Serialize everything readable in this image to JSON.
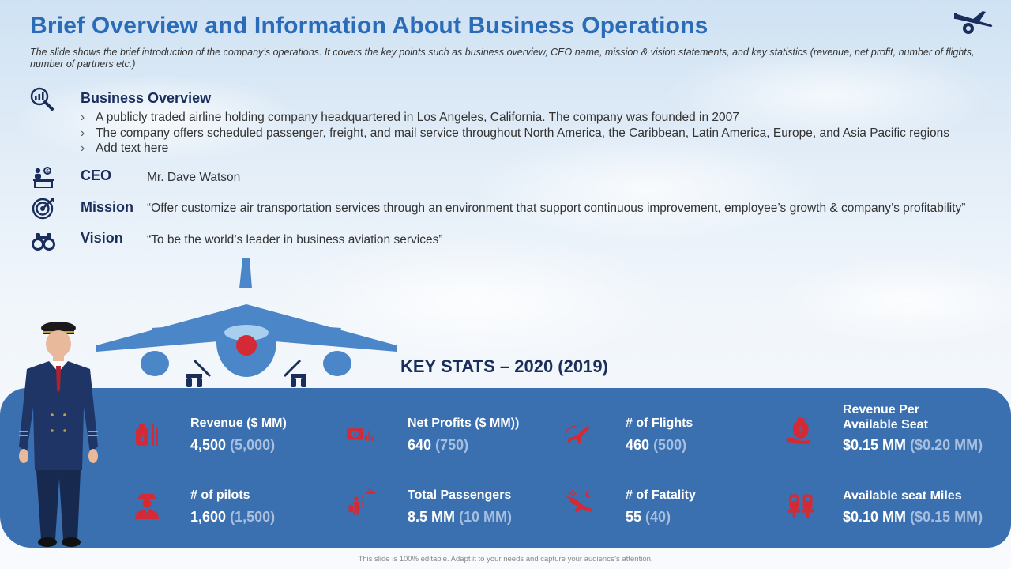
{
  "header": {
    "title": "Brief Overview and Information About Business Operations",
    "subtitle": "The slide shows the brief introduction of the company’s operations. It covers the key points such as business overview, CEO name, mission & vision statements, and key statistics (revenue, net profit, number of flights, number of partners etc.)"
  },
  "overview": {
    "title": "Business Overview",
    "bullets": [
      "A publicly traded airline holding company headquartered in Los Angeles, California. The company was founded in 2007",
      "The company offers scheduled passenger, freight, and mail service throughout North America, the Caribbean, Latin America, Europe, and Asia Pacific regions",
      "Add text here"
    ]
  },
  "ceo": {
    "label": "CEO",
    "value": "Mr. Dave Watson"
  },
  "mission": {
    "label": "Mission",
    "value": "“Offer customize air transportation services through an environment that support continuous improvement, employee’s growth & company’s profitability”"
  },
  "vision": {
    "label": "Vision",
    "value": "“To be the world’s leader in business aviation services”"
  },
  "key_stats": {
    "title": "KEY STATS – 2020 (2019)",
    "items": [
      {
        "label": "Revenue ($ MM)",
        "current": "4,500",
        "previous": "(5,000)",
        "icon": "revenue-icon"
      },
      {
        "label": "Net Profits ($ MM))",
        "current": "640",
        "previous": "(750)",
        "icon": "net-profit-icon"
      },
      {
        "label": "# of Flights",
        "current": "460",
        "previous": "(500)",
        "icon": "flight-icon"
      },
      {
        "label_line1": "Revenue Per",
        "label_line2": "Available Seat",
        "current": "$0.15 MM",
        "previous": "($0.20 MM)",
        "icon": "revenue-per-seat-icon"
      },
      {
        "label": "# of pilots",
        "current": "1,600",
        "previous": "(1,500)",
        "icon": "pilot-icon"
      },
      {
        "label": "Total Passengers",
        "current": "8.5 MM",
        "previous": "(10 MM)",
        "icon": "passenger-icon"
      },
      {
        "label": "# of Fatality",
        "current": "55",
        "previous": "(40)",
        "icon": "crash-icon"
      },
      {
        "label": "Available seat Miles",
        "current": "$0.10 MM",
        "previous": "($0.15 MM)",
        "icon": "seat-icon"
      }
    ]
  },
  "footer": {
    "text": "This slide is 100% editable. Adapt it to your needs and capture your audience's attention."
  },
  "colors": {
    "title_blue": "#2b6cb8",
    "navy": "#1a2e5c",
    "panel_blue": "#3a6fb0",
    "icon_red": "#d42a35",
    "plane_blue": "#4a86c8"
  }
}
